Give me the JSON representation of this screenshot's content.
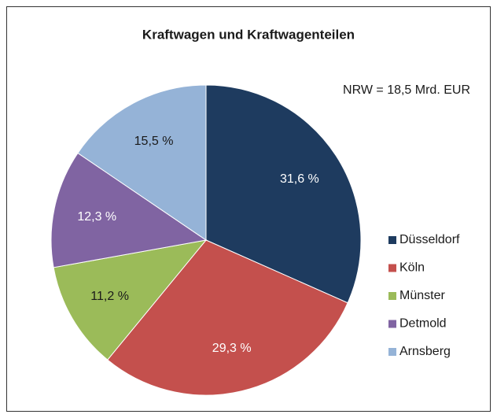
{
  "chart_data": {
    "type": "pie",
    "title": "Kraftwagen und Kraftwagenteilen",
    "annotation": "NRW = 18,5 Mrd. EUR",
    "categories": [
      "Düsseldorf",
      "Köln",
      "Münster",
      "Detmold",
      "Arnsberg"
    ],
    "values": [
      31.6,
      29.3,
      11.2,
      12.3,
      15.5
    ],
    "value_labels": [
      "31,6 %",
      "29,3 %",
      "11,2 %",
      "12,3 %",
      "15,5 %"
    ],
    "colors": [
      "#1e3b5f",
      "#c4504d",
      "#9bbb59",
      "#8064a2",
      "#95b3d7"
    ],
    "legend": "right"
  }
}
